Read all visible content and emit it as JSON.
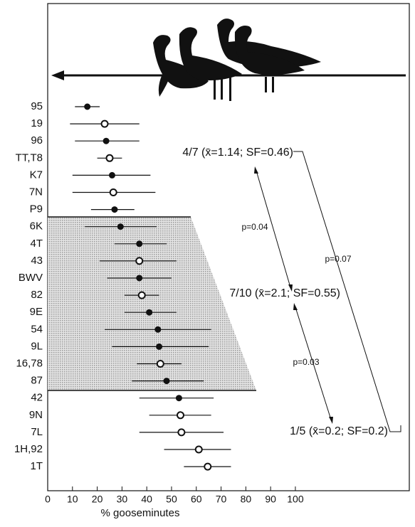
{
  "chart_data": {
    "type": "dotplot",
    "x_label": "% gooseminutes",
    "categories": [
      "95",
      "19",
      "96",
      "TT,T8",
      "K7",
      "7N",
      "P9",
      "6K",
      "4T",
      "43",
      "BWV",
      "82",
      "9E",
      "54",
      "9L",
      "16,78",
      "87",
      "42",
      "9N",
      "7L",
      "1H,92",
      "1T"
    ],
    "values": [
      16,
      23,
      23.6,
      25,
      26,
      26.5,
      27,
      29.4,
      37,
      37,
      37,
      38,
      41,
      44.5,
      45,
      45.5,
      48,
      53,
      53.6,
      54,
      61,
      64.6
    ],
    "low": [
      11,
      9,
      11,
      20,
      10,
      10,
      17.5,
      15,
      27,
      21,
      24,
      31,
      31,
      23,
      26,
      36,
      34,
      37,
      41,
      37,
      47,
      55
    ],
    "high": [
      21,
      37,
      37,
      30,
      41.5,
      43.5,
      35,
      44,
      48,
      52,
      50,
      45,
      52,
      66,
      65,
      54,
      63,
      67,
      66,
      71,
      74,
      74
    ],
    "filled": [
      true,
      false,
      true,
      false,
      true,
      false,
      true,
      true,
      true,
      false,
      true,
      false,
      true,
      true,
      true,
      false,
      true,
      true,
      false,
      false,
      false,
      false
    ],
    "color": "#111111",
    "xlim": [
      0,
      146
    ],
    "xticks": [
      0,
      10,
      20,
      30,
      40,
      50,
      60,
      70,
      80,
      90,
      100
    ],
    "annotations": [
      {
        "text": "4/7 (x̄=1.14; SF=0.46)"
      },
      {
        "text": "p=0.04"
      },
      {
        "text": "p=0.07"
      },
      {
        "text": "7/10 (x̄=2.1; SF=0.55)"
      },
      {
        "text": "p=0.03"
      },
      {
        "text": "1/5 (x̄=0.2; SF=0.2)"
      }
    ]
  }
}
